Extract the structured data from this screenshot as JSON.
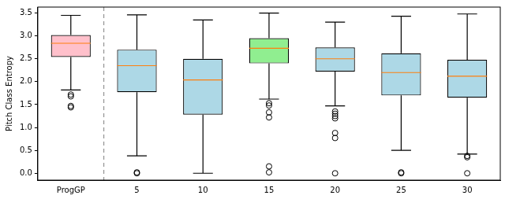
{
  "chart_data": {
    "type": "box",
    "ylabel": "Pitch Class Entropy",
    "categories": [
      "ProgGP",
      "5",
      "10",
      "15",
      "20",
      "25",
      "30"
    ],
    "values": [
      {
        "low": 1.82,
        "q1": 2.54,
        "median": 2.84,
        "q3": 3.02,
        "high": 3.45,
        "outliers": [
          1.72,
          1.68,
          1.47,
          1.44
        ]
      },
      {
        "low": 0.38,
        "q1": 1.77,
        "median": 2.35,
        "q3": 2.7,
        "high": 3.46,
        "outliers": [
          0.02,
          0.0
        ]
      },
      {
        "low": 0.0,
        "q1": 1.28,
        "median": 2.04,
        "q3": 2.5,
        "high": 3.35,
        "outliers": []
      },
      {
        "low": 1.62,
        "q1": 2.4,
        "median": 2.73,
        "q3": 2.95,
        "high": 3.5,
        "outliers": [
          1.53,
          1.48,
          1.33,
          1.22,
          0.15,
          0.02
        ]
      },
      {
        "low": 1.47,
        "q1": 2.22,
        "median": 2.5,
        "q3": 2.75,
        "high": 3.3,
        "outliers": [
          1.35,
          1.3,
          1.25,
          1.2,
          0.88,
          0.77,
          0.0
        ]
      },
      {
        "low": 0.5,
        "q1": 1.7,
        "median": 2.2,
        "q3": 2.62,
        "high": 3.43,
        "outliers": [
          0.02,
          0.0
        ]
      },
      {
        "low": 0.42,
        "q1": 1.65,
        "median": 2.12,
        "q3": 2.48,
        "high": 3.48,
        "outliers": [
          0.38,
          0.35,
          0.0
        ]
      }
    ],
    "colors": [
      "#ffc0cb",
      "#add8e6",
      "#add8e6",
      "#90ee90",
      "#add8e6",
      "#add8e6",
      "#add8e6"
    ],
    "ylim": [
      -0.15,
      3.63
    ],
    "yticks": [
      {
        "value": 0,
        "label": "0.0"
      },
      {
        "value": 0.5,
        "label": "0.5"
      },
      {
        "value": 1,
        "label": "1.0"
      },
      {
        "value": 1.5,
        "label": "1.5"
      },
      {
        "value": 2,
        "label": "2.0"
      },
      {
        "value": 2.5,
        "label": "2.5"
      },
      {
        "value": 3,
        "label": "3.0"
      },
      {
        "value": 3.5,
        "label": "3.5"
      }
    ],
    "grid": false
  }
}
